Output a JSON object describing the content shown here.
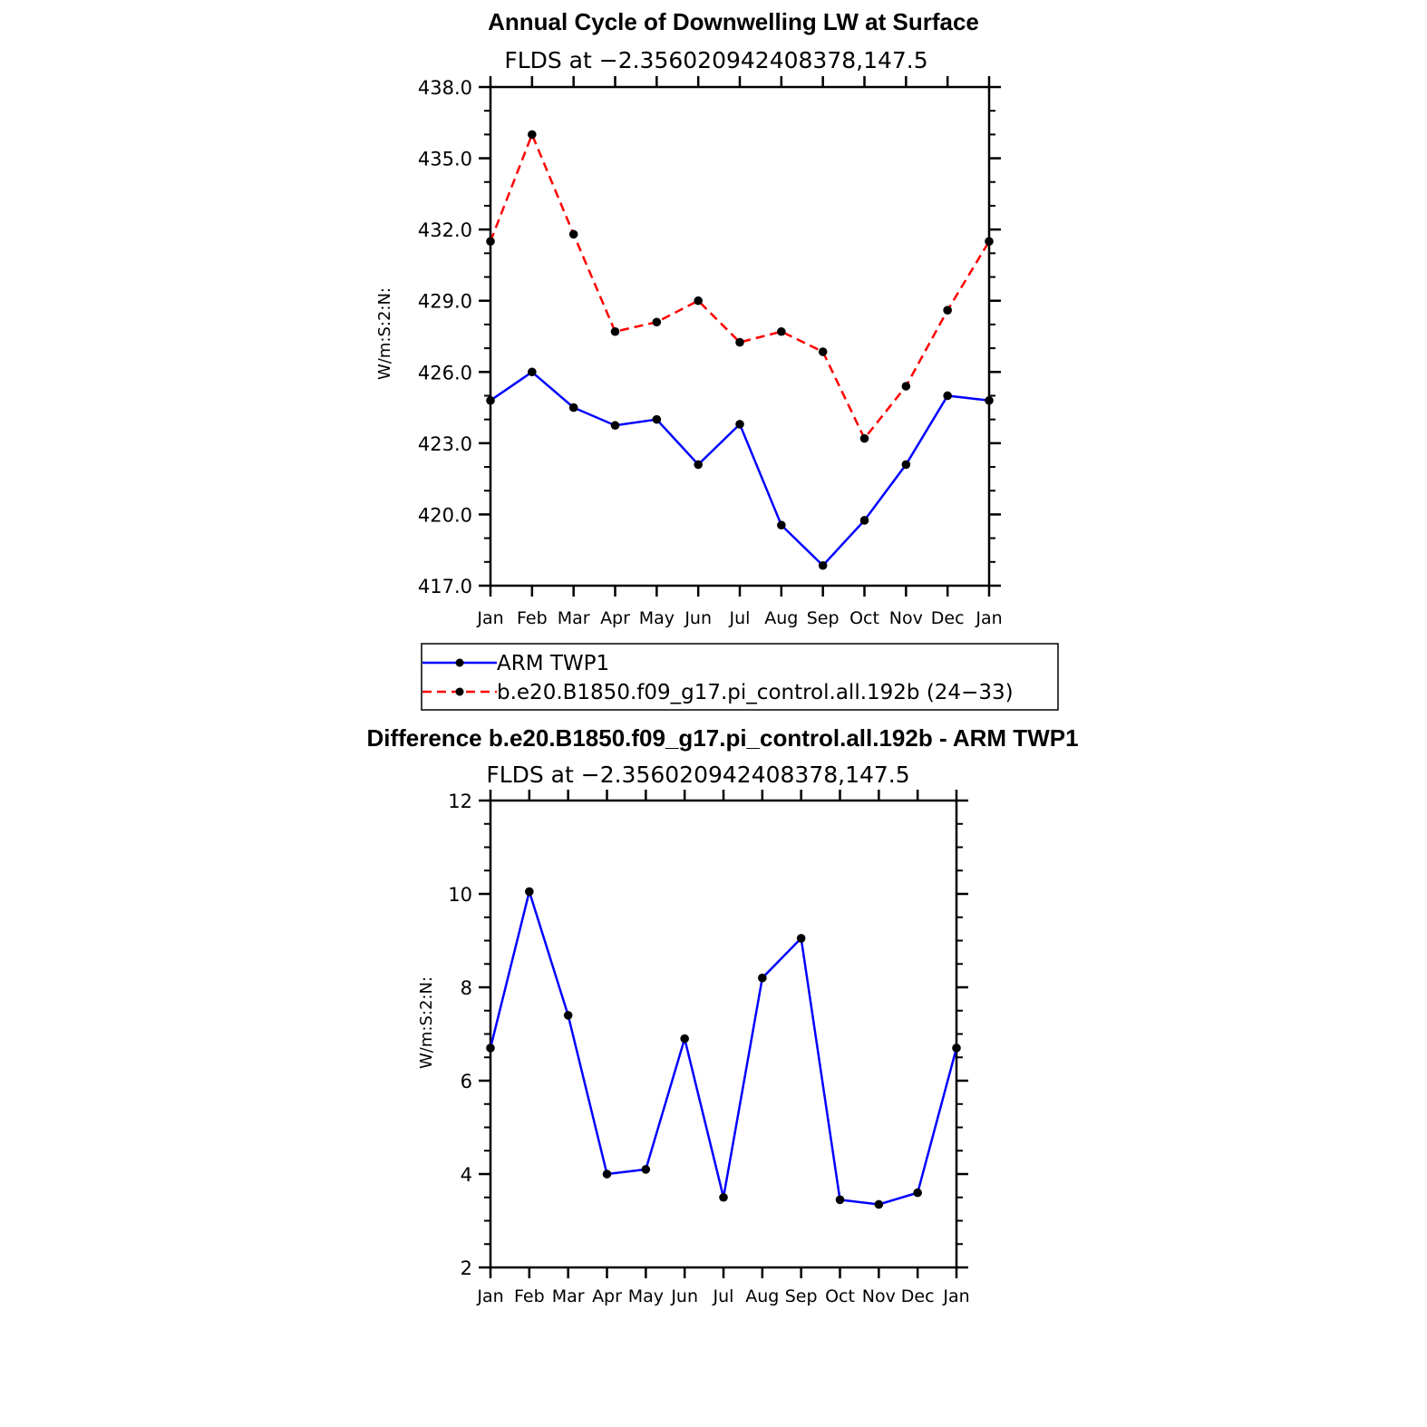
{
  "chart_data": [
    {
      "type": "line",
      "title": "Annual Cycle of Downwelling LW at Surface",
      "subtitle": "FLDS at −2.356020942408378,147.5",
      "ylabel": "W/m:S:2:N:",
      "xlabel": "",
      "categories": [
        "Jan",
        "Feb",
        "Mar",
        "Apr",
        "May",
        "Jun",
        "Jul",
        "Aug",
        "Sep",
        "Oct",
        "Nov",
        "Dec",
        "Jan"
      ],
      "ylim": [
        417.0,
        438.0
      ],
      "yticks": [
        "417.0",
        "420.0",
        "423.0",
        "426.0",
        "429.0",
        "432.0",
        "435.0",
        "438.0"
      ],
      "grid": false,
      "legend_position": "below",
      "series": [
        {
          "name": "ARM TWP1",
          "color": "#0000ff",
          "dash": "solid",
          "values": [
            424.8,
            426.0,
            424.5,
            423.75,
            424.0,
            422.1,
            423.8,
            419.55,
            417.85,
            419.75,
            422.1,
            425.0,
            424.8
          ]
        },
        {
          "name": "b.e20.B1850.f09_g17.pi_control.all.192b (24−33)",
          "color": "#ff0000",
          "dash": "dashed",
          "values": [
            431.5,
            436.0,
            431.8,
            427.7,
            428.1,
            429.0,
            427.25,
            427.7,
            426.85,
            423.2,
            425.4,
            428.6,
            431.5
          ]
        }
      ]
    },
    {
      "type": "line",
      "title": "Difference b.e20.B1850.f09_g17.pi_control.all.192b - ARM TWP1",
      "subtitle": "FLDS at −2.356020942408378,147.5",
      "ylabel": "W/m:S:2:N:",
      "xlabel": "",
      "categories": [
        "Jan",
        "Feb",
        "Mar",
        "Apr",
        "May",
        "Jun",
        "Jul",
        "Aug",
        "Sep",
        "Oct",
        "Nov",
        "Dec",
        "Jan"
      ],
      "ylim": [
        2,
        12
      ],
      "yticks": [
        "2",
        "4",
        "6",
        "8",
        "10",
        "12"
      ],
      "grid": false,
      "series": [
        {
          "color": "#0000ff",
          "dash": "solid",
          "values": [
            6.7,
            10.05,
            7.4,
            4.0,
            4.1,
            6.9,
            3.5,
            8.2,
            9.05,
            3.45,
            3.35,
            3.6,
            6.7
          ]
        }
      ]
    }
  ]
}
